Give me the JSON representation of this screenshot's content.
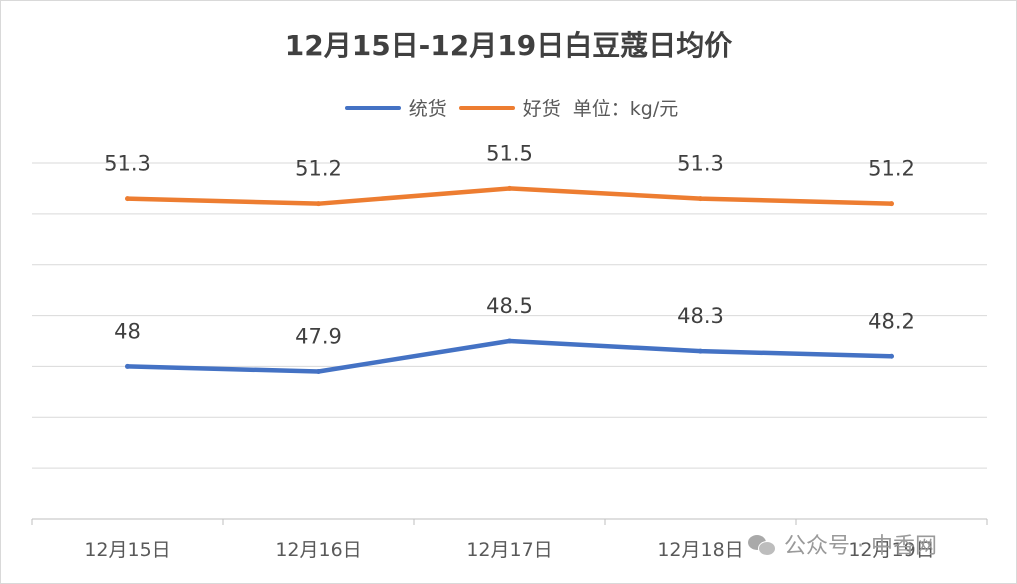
{
  "chart_data": {
    "type": "line",
    "title": "12月15日-12月19日白豆蔻日均价",
    "unit_label": "单位：kg/元",
    "categories": [
      "12月15日",
      "12月16日",
      "12月17日",
      "12月18日",
      "12月19日"
    ],
    "series": [
      {
        "name": "统货",
        "values": [
          48,
          47.9,
          48.5,
          48.3,
          48.2
        ],
        "color": "#4472c4"
      },
      {
        "name": "好货",
        "values": [
          51.3,
          51.2,
          51.5,
          51.3,
          51.2
        ],
        "color": "#ed7d31"
      }
    ],
    "ylim": [
      45,
      52
    ],
    "grid": true,
    "y_axis_labels_shown": false,
    "legend_position": "top"
  },
  "watermark": {
    "text": "公众号 · 中香网"
  }
}
